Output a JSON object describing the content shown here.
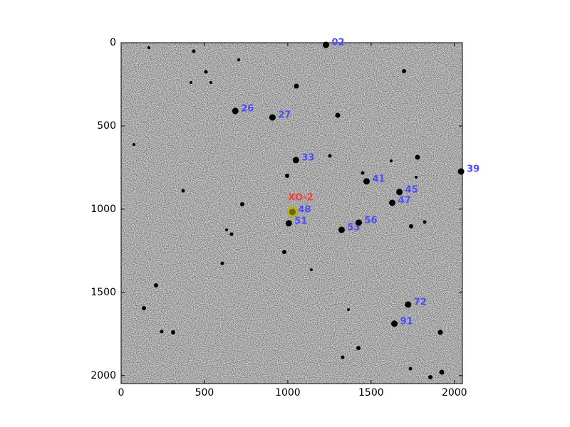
{
  "chart_data": {
    "type": "scatter",
    "x": [
      1229,
      685,
      908,
      1049,
      2040,
      1473,
      1670,
      1627,
      1028,
      1006,
      1323,
      1426,
      1722,
      1640
    ],
    "y": [
      13,
      410,
      449,
      705,
      774,
      833,
      897,
      962,
      1017,
      1085,
      1124,
      1081,
      1573,
      1688
    ],
    "point_labels": [
      "02",
      "26",
      "27",
      "33",
      "39",
      "41",
      "45",
      "47",
      "48",
      "51",
      "53",
      "56",
      "72",
      "91"
    ],
    "label_color": "#4d4dff",
    "marker_color": "#000000",
    "target": {
      "label": "XO-2",
      "x": 1028,
      "y": 1017,
      "color": "#ff3b3b",
      "marker_color": "#b3b300"
    },
    "xlim": [
      0,
      2048
    ],
    "ylim": [
      2048,
      0
    ],
    "xticks": [
      0,
      500,
      1000,
      1500,
      2000
    ],
    "yticks": [
      0,
      500,
      1000,
      1500,
      2000
    ]
  }
}
